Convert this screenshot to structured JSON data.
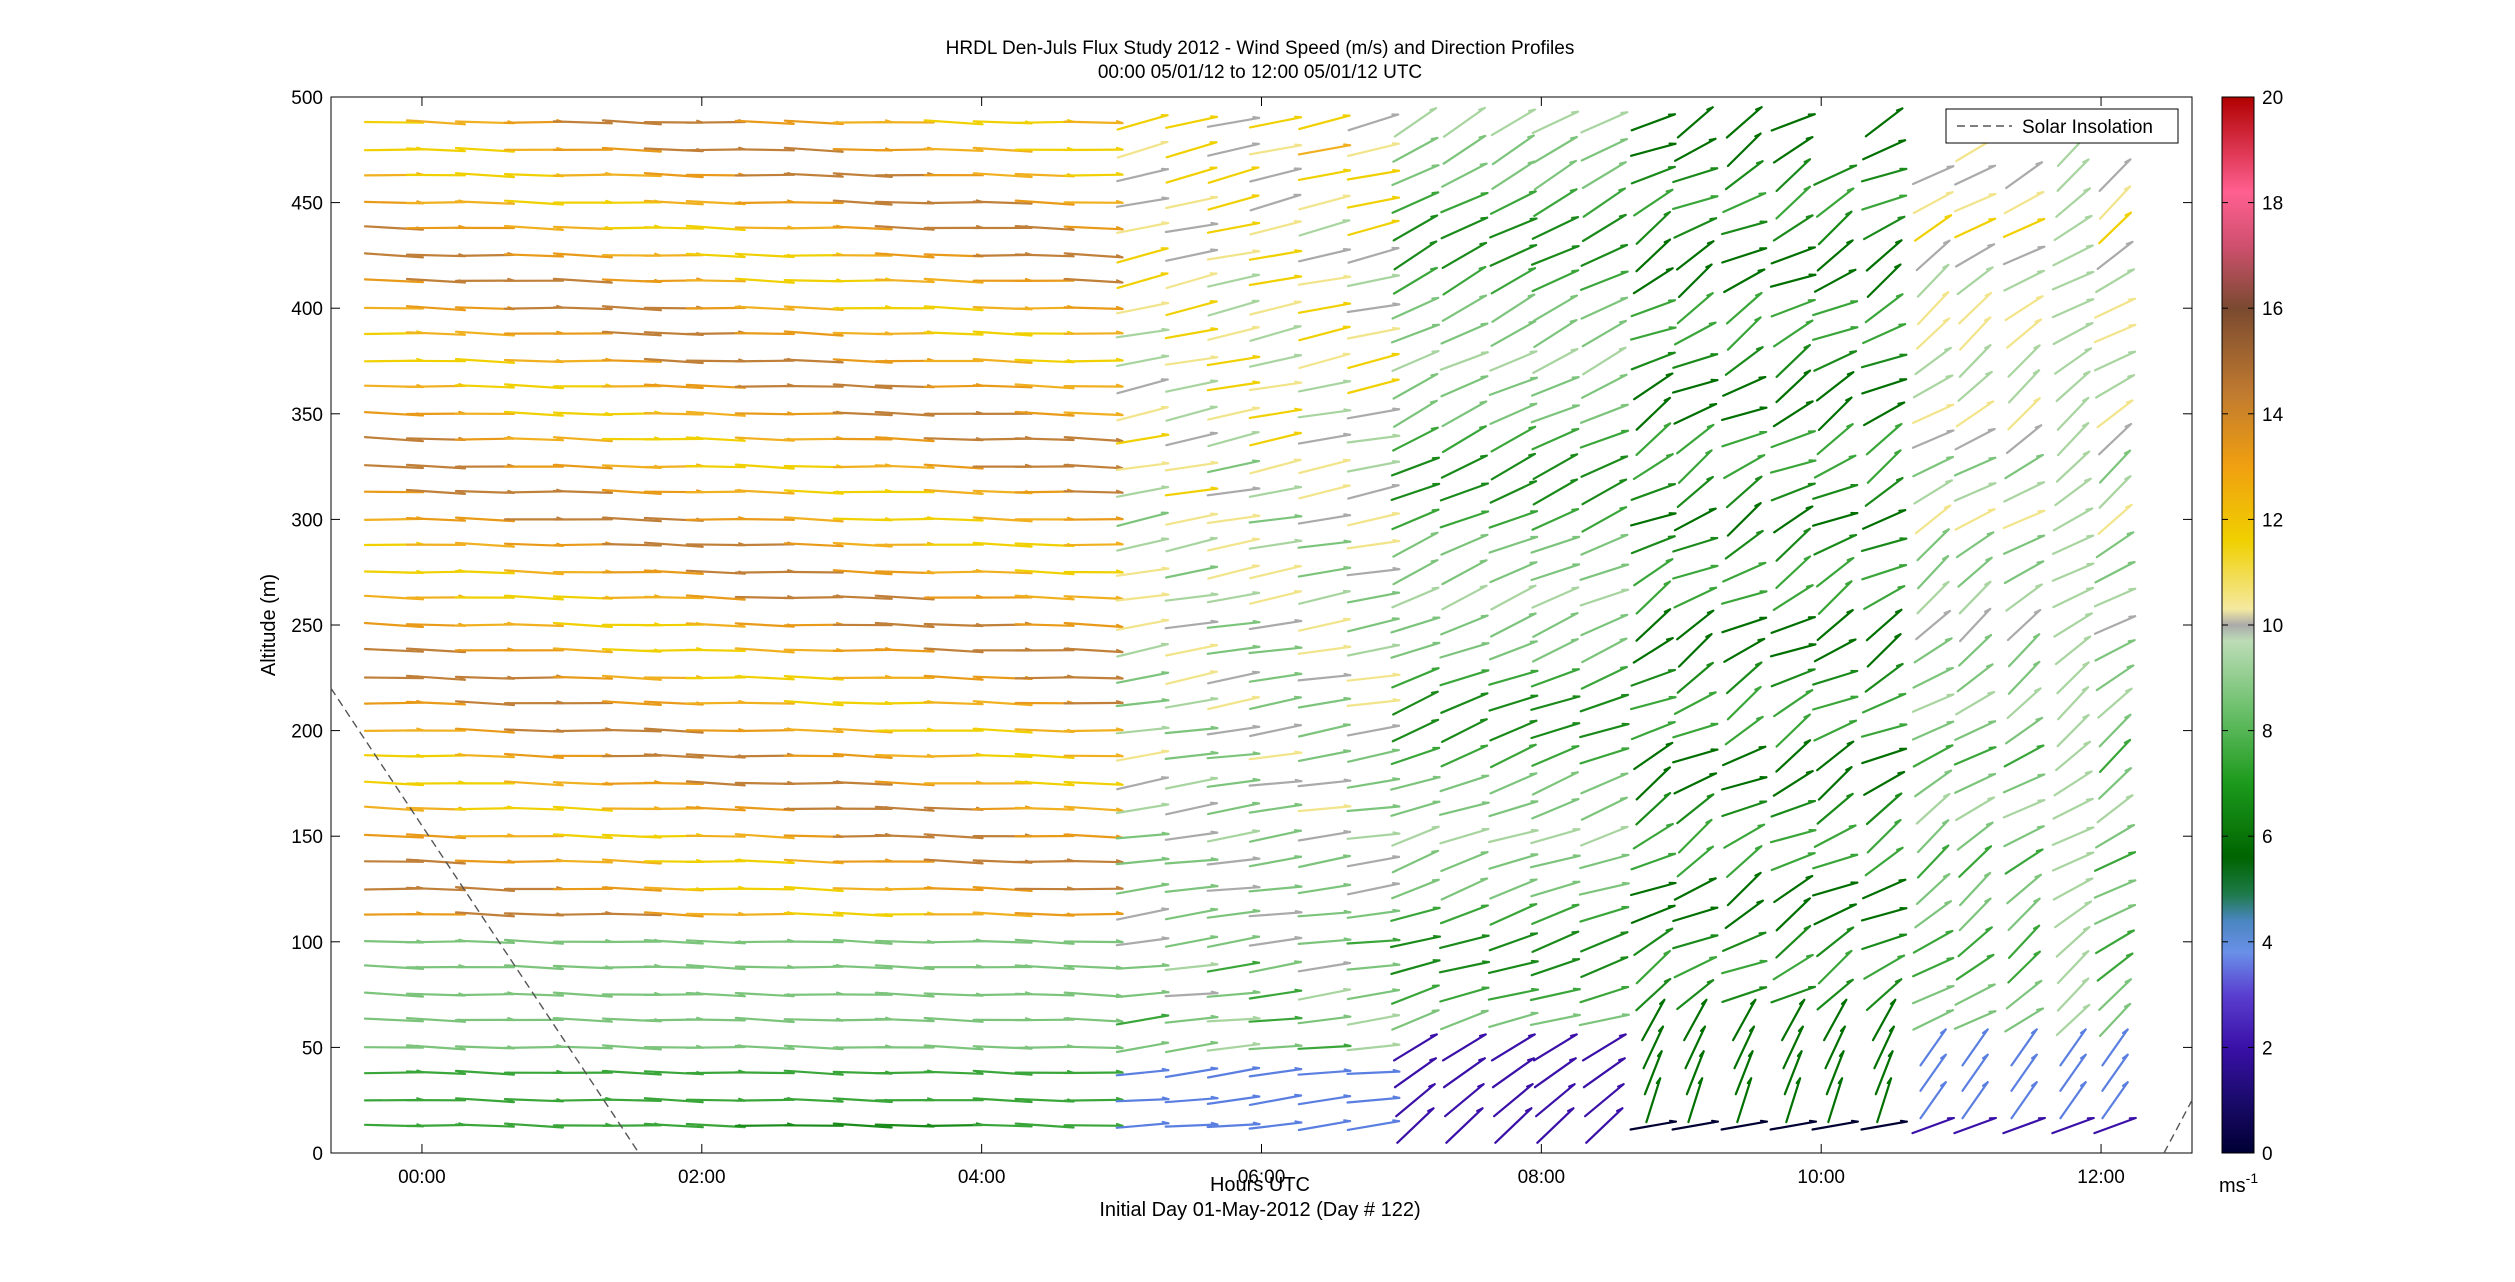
{
  "chart_data": {
    "type": "wind-barb profile",
    "title": "HRDL Den-Juls Flux Study 2012 - Wind Speed (m/s) and Direction Profiles",
    "subtitle": "00:00 05/01/12 to 12:00 05/01/12  UTC",
    "xlabel": "Hours UTC",
    "xlabel2": "Initial Day 01-May-2012 (Day # 122)",
    "ylabel": "Altitude (m)",
    "xlim": [
      -0.65,
      12.65
    ],
    "ylim": [
      0,
      500
    ],
    "x_ticks": [
      0,
      2,
      4,
      6,
      8,
      10,
      12
    ],
    "x_tick_labels": [
      "00:00",
      "02:00",
      "04:00",
      "06:00",
      "08:00",
      "10:00",
      "12:00"
    ],
    "y_ticks": [
      0,
      50,
      100,
      150,
      200,
      250,
      300,
      350,
      400,
      450,
      500
    ],
    "y_tick_labels": [
      "0",
      "50",
      "100",
      "150",
      "200",
      "250",
      "300",
      "350",
      "400",
      "450",
      "500"
    ],
    "colorbar": {
      "range": [
        0,
        20
      ],
      "ticks": [
        0,
        2,
        4,
        6,
        8,
        10,
        12,
        14,
        16,
        18,
        20
      ],
      "tick_labels": [
        "0",
        "2",
        "4",
        "6",
        "8",
        "10",
        "12",
        "14",
        "16",
        "18",
        "20"
      ],
      "unit_label": "ms",
      "unit_superscript": "-1"
    },
    "legend": {
      "position": "top-right",
      "entries": [
        "Solar Insolation"
      ]
    },
    "solar_insolation_line": {
      "x": [
        -0.65,
        1.55
      ],
      "y": [
        220,
        0
      ],
      "x2": [
        12.45,
        12.65
      ],
      "y2": [
        0,
        25
      ]
    },
    "profile_times": [
      -0.2,
      0.1,
      0.45,
      0.8,
      1.15,
      1.5,
      1.8,
      2.1,
      2.45,
      2.8,
      3.15,
      3.45,
      3.8,
      4.15,
      4.45,
      4.8,
      5.15,
      5.5,
      5.8,
      6.1,
      6.45,
      6.8,
      7.1,
      7.45,
      7.8,
      8.1,
      8.45,
      8.8,
      9.1,
      9.45,
      9.8,
      10.1,
      10.45,
      10.8,
      11.1,
      11.45,
      11.8,
      12.1
    ],
    "profile_altitudes": [
      13,
      25,
      38,
      50,
      63,
      75,
      88,
      100,
      113,
      125,
      138,
      150,
      163,
      175,
      188,
      200,
      213,
      225,
      238,
      250,
      263,
      275,
      288,
      300,
      313,
      325,
      338,
      350,
      363,
      375,
      388,
      400,
      413,
      425,
      438,
      450,
      463,
      475,
      488
    ]
  }
}
